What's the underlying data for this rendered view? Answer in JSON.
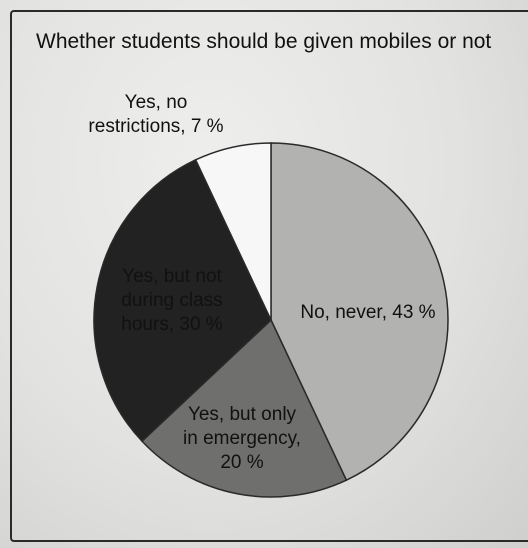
{
  "chart_data": {
    "type": "pie",
    "title": "Whether students should be given mobiles or not",
    "slices": [
      {
        "label": "No, never, 43 %",
        "name": "No, never",
        "value": 43,
        "color": "#b2b2b0",
        "text_color": "#111111"
      },
      {
        "label": "Yes, but only in emergency, 20 %",
        "name": "Yes, but only in emergency",
        "value": 20,
        "color": "#6f6f6d",
        "text_color": "#111111"
      },
      {
        "label": "Yes, but not during class hours, 30 %",
        "name": "Yes, but not during class hours",
        "value": 30,
        "color": "#222222",
        "text_color": "#1a1a1a"
      },
      {
        "label": "Yes, no restrictions, 7 %",
        "name": "Yes, no restrictions",
        "value": 7,
        "color": "#f7f7f7",
        "text_color": "#111111"
      }
    ],
    "legend": "none",
    "start_angle": "12 o'clock",
    "direction": "clockwise"
  }
}
